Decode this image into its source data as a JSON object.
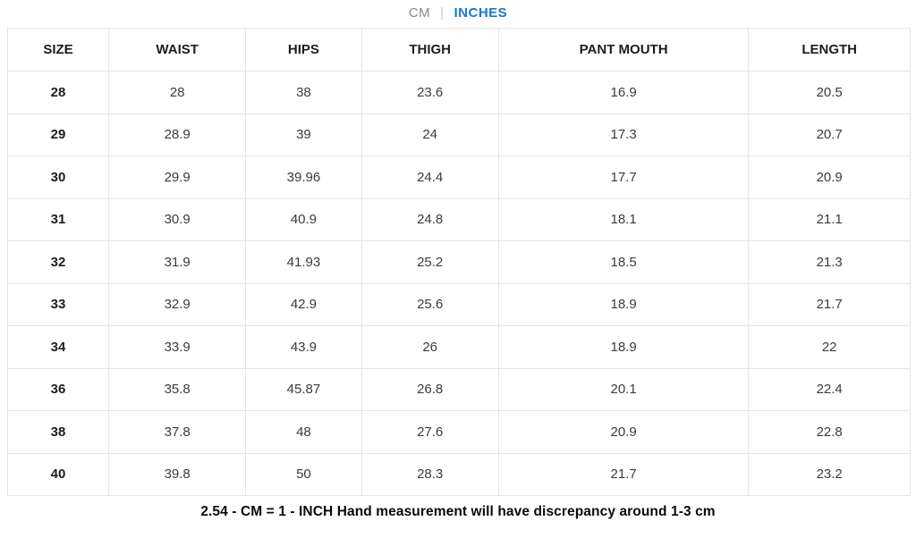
{
  "unit_toggle": {
    "cm_label": "CM",
    "separator": "|",
    "inches_label": "INCHES",
    "active_unit": "INCHES",
    "active_color": "#1778d2",
    "inactive_color": "#8a8a8a"
  },
  "table": {
    "columns": [
      "SIZE",
      "WAIST",
      "HIPS",
      "THIGH",
      "PANT MOUTH",
      "LENGTH"
    ],
    "rows": [
      [
        "28",
        "28",
        "38",
        "23.6",
        "16.9",
        "20.5"
      ],
      [
        "29",
        "28.9",
        "39",
        "24",
        "17.3",
        "20.7"
      ],
      [
        "30",
        "29.9",
        "39.96",
        "24.4",
        "17.7",
        "20.9"
      ],
      [
        "31",
        "30.9",
        "40.9",
        "24.8",
        "18.1",
        "21.1"
      ],
      [
        "32",
        "31.9",
        "41.93",
        "25.2",
        "18.5",
        "21.3"
      ],
      [
        "33",
        "32.9",
        "42.9",
        "25.6",
        "18.9",
        "21.7"
      ],
      [
        "34",
        "33.9",
        "43.9",
        "26",
        "18.9",
        "22"
      ],
      [
        "36",
        "35.8",
        "45.87",
        "26.8",
        "20.1",
        "22.4"
      ],
      [
        "38",
        "37.8",
        "48",
        "27.6",
        "20.9",
        "22.8"
      ],
      [
        "40",
        "39.8",
        "50",
        "28.3",
        "21.7",
        "23.2"
      ]
    ]
  },
  "footer": {
    "note": "2.54 - CM = 1 - INCH Hand measurement will have discrepancy around 1-3 cm"
  }
}
